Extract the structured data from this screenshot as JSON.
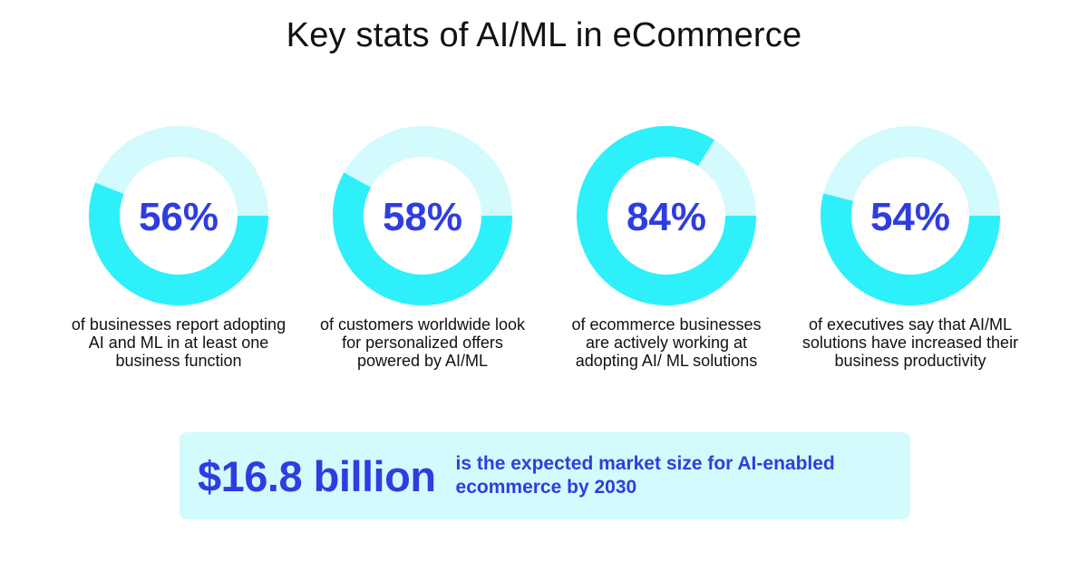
{
  "title": "Key stats of AI/ML in eCommerce",
  "colors": {
    "accent_ring": "#2ef0fa",
    "light_ring": "#d3fafd",
    "number": "#2f3de0",
    "banner_bg": "#d3fafd"
  },
  "chart_data": {
    "type": "pie",
    "items": [
      {
        "value": 56,
        "label": "56%",
        "description": "of businesses report adopting AI and ML in at least one business function"
      },
      {
        "value": 58,
        "label": "58%",
        "description": "of customers worldwide look for personalized offers powered by AI/ML"
      },
      {
        "value": 84,
        "label": "84%",
        "description": "of ecommerce businesses are actively working at adopting AI/ ML solutions"
      },
      {
        "value": 54,
        "label": "54%",
        "description": "of executives say that AI/ML solutions have increased their business productivity"
      }
    ]
  },
  "banner": {
    "amount": "$16.8 billion",
    "text": "is the expected market size for AI-enabled ecommerce by 2030"
  }
}
